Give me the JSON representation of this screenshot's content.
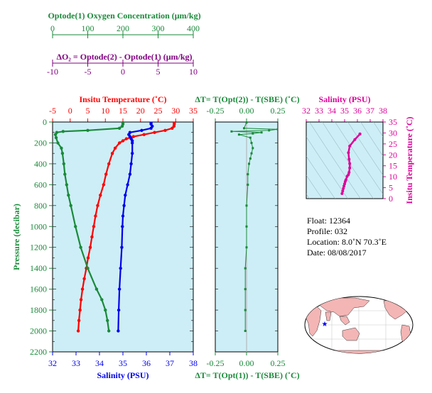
{
  "oxygen_axis": {
    "title": "Optode(1) Oxygen Concentration (μm/kg)",
    "ticks": [
      "0",
      "100",
      "200",
      "300",
      "400"
    ]
  },
  "delta_o2_axis": {
    "title": "ΔO₂ = Optode(2) - Optode(1)   (μm/kg)",
    "ticks": [
      "-10",
      "-5",
      "0",
      "5",
      "10"
    ]
  },
  "temperature_axis": {
    "title": "Insitu Temperature (˚C)",
    "ticks": [
      "-5",
      "0",
      "5",
      "10",
      "15",
      "20",
      "25",
      "30",
      "35"
    ]
  },
  "salinity_axis": {
    "title": "Salinity (PSU)",
    "ticks": [
      "32",
      "33",
      "34",
      "35",
      "36",
      "37",
      "38"
    ]
  },
  "pressure_axis": {
    "title": "Pressure (decibar)",
    "ticks": [
      "0",
      "200",
      "400",
      "600",
      "800",
      "1000",
      "1200",
      "1400",
      "1600",
      "1800",
      "2000",
      "2200"
    ]
  },
  "delta_t_top_axis": {
    "title": "ΔT= T(Opt(2)) - T(SBE) (˚C)",
    "ticks": [
      "-0.25",
      "0.00",
      "0.25"
    ]
  },
  "delta_t_bottom_axis": {
    "title": "ΔT= T(Opt(1)) - T(SBE) (˚C)",
    "ticks": [
      "-0.25",
      "0.00",
      "0.25"
    ]
  },
  "ts_axis": {
    "title": "Salinity (PSU)",
    "xticks": [
      "32",
      "33",
      "34",
      "35",
      "36",
      "37",
      "38"
    ],
    "ylabel": "Insitu Temperature (˚C)",
    "yticks": [
      "0",
      "5",
      "10",
      "15",
      "20",
      "25",
      "30",
      "35"
    ]
  },
  "float_info": {
    "float_line": "Float:  12364",
    "profile_line": "Profile:  032",
    "location_line": "Location:  8.0˚N  70.3˚E",
    "date_line": "Date:  08/08/2017"
  },
  "colors": {
    "oxygen": "#1a8a3a",
    "temperature": "#ff0000",
    "salinity": "#0000ee",
    "delta_o2": "#800080",
    "ts": "#dd0099",
    "panel_bg": "#cdeef6",
    "land": "#f4b5b5",
    "ocean": "#ffffff"
  },
  "chart_data": [
    {
      "type": "line",
      "name": "temperature_salinity_oxygen_profile",
      "ylim": [
        2200,
        0
      ],
      "temperature_xlim": [
        -5,
        35
      ],
      "salinity_xlim": [
        32,
        38
      ],
      "oxygen_xlim": [
        0,
        400
      ],
      "series": [
        {
          "name": "Insitu Temperature",
          "pressure": [
            5,
            20,
            40,
            60,
            80,
            100,
            120,
            140,
            160,
            180,
            200,
            250,
            300,
            400,
            500,
            600,
            700,
            800,
            900,
            1000,
            1100,
            1200,
            1300,
            1400,
            1500,
            1600,
            1700,
            1800,
            1900,
            2000
          ],
          "values": [
            29.6,
            29.6,
            29.5,
            29.0,
            27.0,
            24.0,
            21.0,
            18.0,
            16.0,
            15.0,
            14.0,
            12.8,
            12.0,
            11.0,
            10.2,
            9.5,
            8.6,
            7.8,
            7.2,
            6.7,
            6.2,
            5.7,
            5.1,
            4.6,
            4.0,
            3.5,
            3.1,
            2.8,
            2.5,
            2.3
          ]
        },
        {
          "name": "Salinity",
          "pressure": [
            5,
            20,
            40,
            60,
            80,
            100,
            120,
            140,
            160,
            180,
            200,
            300,
            400,
            500,
            600,
            700,
            800,
            900,
            1000,
            1200,
            1400,
            1600,
            1800,
            2000
          ],
          "values": [
            36.2,
            36.2,
            36.25,
            36.2,
            35.8,
            35.3,
            35.25,
            35.3,
            35.35,
            35.4,
            35.4,
            35.4,
            35.35,
            35.3,
            35.2,
            35.1,
            35.05,
            35.0,
            34.98,
            34.95,
            34.9,
            34.85,
            34.82,
            34.8
          ]
        },
        {
          "name": "Oxygen Concentration",
          "pressure": [
            5,
            20,
            40,
            60,
            80,
            90,
            100,
            120,
            150,
            200,
            250,
            300,
            400,
            500,
            600,
            700,
            800,
            1000,
            1200,
            1400,
            1600,
            1700,
            1800,
            1900,
            2000
          ],
          "values": [
            200,
            200,
            198,
            190,
            100,
            30,
            12,
            8,
            10,
            15,
            25,
            28,
            32,
            35,
            40,
            45,
            52,
            65,
            80,
            100,
            125,
            140,
            150,
            156,
            160
          ]
        }
      ]
    },
    {
      "type": "scatter",
      "name": "temperature_difference_profile",
      "xlim": [
        -0.25,
        0.25
      ],
      "ylim": [
        2200,
        0
      ],
      "series": [
        {
          "name": "ΔT",
          "pressure": [
            5,
            60,
            70,
            80,
            90,
            100,
            110,
            120,
            150,
            200,
            250,
            300,
            350,
            400,
            500,
            600,
            800,
            1000,
            1200,
            1400,
            1600,
            1800,
            2000
          ],
          "values": [
            0.0,
            -0.02,
            0.25,
            0.18,
            -0.12,
            0.12,
            0.05,
            -0.06,
            0.03,
            0.04,
            0.05,
            0.04,
            0.03,
            0.02,
            0.01,
            0.01,
            0.0,
            0.0,
            0.0,
            -0.01,
            -0.01,
            -0.01,
            -0.01
          ]
        }
      ]
    },
    {
      "type": "line",
      "name": "temperature_salinity_diagram",
      "xlim": [
        32,
        38
      ],
      "ylim": [
        0,
        35
      ],
      "salinity": [
        34.8,
        34.85,
        34.9,
        34.95,
        35.0,
        35.05,
        35.1,
        35.2,
        35.3,
        35.35,
        35.4,
        35.4,
        35.35,
        35.3,
        35.4,
        35.8,
        36.2,
        36.2
      ],
      "temperature": [
        2.3,
        3.5,
        4.6,
        5.7,
        6.7,
        7.8,
        8.6,
        10.2,
        11.0,
        12.0,
        14.0,
        16.0,
        18.0,
        21.0,
        24.0,
        27.0,
        29.5,
        29.6
      ]
    }
  ]
}
